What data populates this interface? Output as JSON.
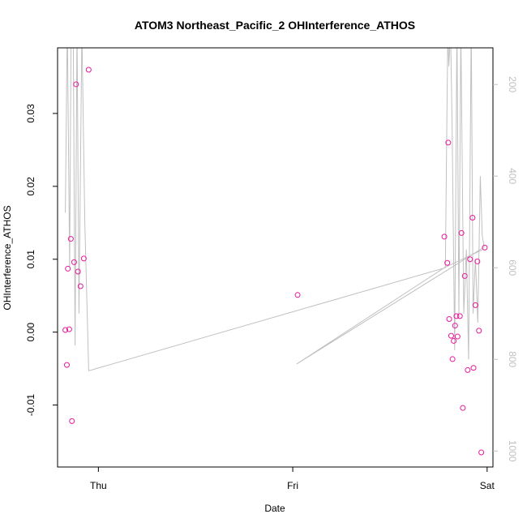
{
  "chart_data": {
    "type": "scatter",
    "title": "ATOM3 Northeast_Pacific_2 OHInterference_ATHOS",
    "xlabel": "Date",
    "ylabel": "OHInterference_ATHOS",
    "x_ticks": [
      {
        "label": "Thu",
        "value": 0.0
      },
      {
        "label": "Fri",
        "value": 1.0
      },
      {
        "label": "Sat",
        "value": 2.0
      }
    ],
    "xlim": [
      -0.21,
      2.03
    ],
    "ylim": [
      -0.0185,
      0.039
    ],
    "y_ticks": [
      -0.01,
      0.0,
      0.01,
      0.02,
      0.03
    ],
    "y_tick_labels": [
      "-0.01",
      "0.00",
      "0.01",
      "0.02",
      "0.03"
    ],
    "y2_ticks": [
      200,
      400,
      600,
      800,
      1000
    ],
    "y2_tick_labels": [
      "200",
      "400",
      "600",
      "800",
      "1000"
    ],
    "y2lim": [
      1035,
      120
    ],
    "grid": false,
    "colors": {
      "points": "#e8189a",
      "line": "#c0c0c0",
      "axis": "#000000",
      "right_axis": "#c0c0c0"
    },
    "series": [
      {
        "kind": "points",
        "x_unit": "days since Thu 00:00",
        "points": [
          {
            "x": -0.17,
            "y": 0.0003
          },
          {
            "x": -0.162,
            "y": -0.0045
          },
          {
            "x": -0.157,
            "y": 0.0087
          },
          {
            "x": -0.15,
            "y": 0.0004
          },
          {
            "x": -0.142,
            "y": 0.0128
          },
          {
            "x": -0.136,
            "y": -0.0122
          },
          {
            "x": -0.125,
            "y": 0.0096
          },
          {
            "x": -0.115,
            "y": 0.034
          },
          {
            "x": -0.105,
            "y": 0.0083
          },
          {
            "x": -0.092,
            "y": 0.0063
          },
          {
            "x": -0.075,
            "y": 0.0101
          },
          {
            "x": -0.05,
            "y": 0.036
          },
          {
            "x": 1.025,
            "y": 0.0051
          },
          {
            "x": 1.78,
            "y": 0.0131
          },
          {
            "x": 1.795,
            "y": 0.0095
          },
          {
            "x": 1.8,
            "y": 0.026
          },
          {
            "x": 1.805,
            "y": 0.0018
          },
          {
            "x": 1.815,
            "y": -0.0005
          },
          {
            "x": 1.822,
            "y": -0.0037
          },
          {
            "x": 1.828,
            "y": -0.0012
          },
          {
            "x": 1.835,
            "y": 0.0009
          },
          {
            "x": 1.842,
            "y": 0.0022
          },
          {
            "x": 1.848,
            "y": -0.0006
          },
          {
            "x": 1.86,
            "y": 0.0022
          },
          {
            "x": 1.868,
            "y": 0.0136
          },
          {
            "x": 1.875,
            "y": -0.0104
          },
          {
            "x": 1.885,
            "y": 0.0077
          },
          {
            "x": 1.9,
            "y": -0.0052
          },
          {
            "x": 1.912,
            "y": 0.01
          },
          {
            "x": 1.925,
            "y": 0.0157
          },
          {
            "x": 1.93,
            "y": -0.0049
          },
          {
            "x": 1.94,
            "y": 0.0037
          },
          {
            "x": 1.95,
            "y": 0.0097
          },
          {
            "x": 1.958,
            "y": 0.0002
          },
          {
            "x": 1.97,
            "y": -0.0165
          },
          {
            "x": 1.988,
            "y": 0.0116
          }
        ]
      },
      {
        "kind": "line",
        "axis": "right",
        "points": [
          {
            "x": -0.17,
            "y": 480
          },
          {
            "x": -0.16,
            "y": 60
          },
          {
            "x": -0.148,
            "y": 600
          },
          {
            "x": -0.14,
            "y": 50
          },
          {
            "x": -0.13,
            "y": 50
          },
          {
            "x": -0.12,
            "y": 770
          },
          {
            "x": -0.11,
            "y": 70
          },
          {
            "x": -0.1,
            "y": 700
          },
          {
            "x": -0.085,
            "y": 80
          },
          {
            "x": -0.07,
            "y": 500
          },
          {
            "x": -0.05,
            "y": 825
          },
          {
            "x": 1.785,
            "y": 600
          },
          {
            "x": 1.798,
            "y": 70
          },
          {
            "x": 1.803,
            "y": 160
          },
          {
            "x": 1.812,
            "y": 80
          },
          {
            "x": 1.82,
            "y": 300
          },
          {
            "x": 1.833,
            "y": 780
          },
          {
            "x": 1.845,
            "y": 70
          },
          {
            "x": 1.855,
            "y": 700
          },
          {
            "x": 1.865,
            "y": 80
          },
          {
            "x": 1.88,
            "y": 700
          },
          {
            "x": 1.893,
            "y": 560
          },
          {
            "x": 1.905,
            "y": 800
          },
          {
            "x": 1.918,
            "y": 70
          },
          {
            "x": 1.928,
            "y": 700
          },
          {
            "x": 1.94,
            "y": 580
          },
          {
            "x": 1.952,
            "y": 720
          },
          {
            "x": 1.965,
            "y": 400
          },
          {
            "x": 1.975,
            "y": 530
          },
          {
            "x": 1.985,
            "y": 555
          },
          {
            "x": 1.02,
            "y": 810
          },
          {
            "x": 1.78,
            "y": 600
          },
          {
            "x": 1.98,
            "y": 560
          }
        ]
      }
    ]
  }
}
